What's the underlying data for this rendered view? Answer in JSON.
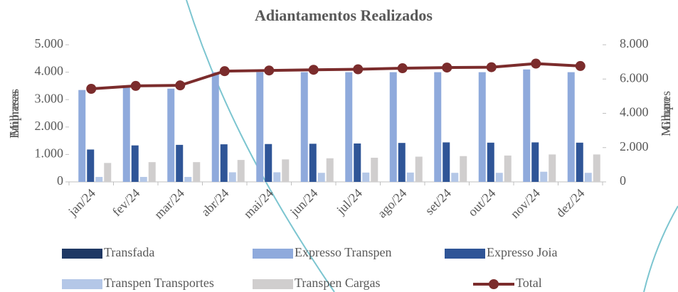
{
  "chart_data": {
    "type": "bar",
    "title": "Adiantamentos Realizados",
    "y_label": "Empresas",
    "y_units": "Milhares",
    "y2_label": "Grupo",
    "y2_units": "Milhares",
    "categories": [
      "jan/24",
      "fev/24",
      "mar/24",
      "abr/24",
      "mai/24",
      "jun/24",
      "jul/24",
      "ago/24",
      "set/24",
      "out/24",
      "nov/24",
      "dez/24"
    ],
    "ylim": [
      0,
      5000
    ],
    "yticks": [
      0,
      {
        "value": 1000,
        "label": "1.000"
      },
      {
        "value": 2000,
        "label": "2.000"
      },
      {
        "value": 3000,
        "label": "3.000"
      },
      {
        "value": 4000,
        "label": "4.000"
      },
      {
        "value": 5000,
        "label": "5.000"
      }
    ],
    "y2lim": [
      0,
      8000
    ],
    "y2ticks": [
      0,
      {
        "value": 2000,
        "label": "2.000"
      },
      {
        "value": 4000,
        "label": "4.000"
      },
      {
        "value": 6000,
        "label": "6.000"
      },
      {
        "value": 8000,
        "label": "8.000"
      }
    ],
    "series": [
      {
        "name": "Transfada",
        "color": "#1f3864",
        "type": "bar",
        "values": [
          0,
          0,
          0,
          0,
          0,
          0,
          0,
          0,
          0,
          0,
          0,
          0
        ]
      },
      {
        "name": "Expresso Transpen",
        "color": "#8faadc",
        "type": "bar",
        "values": [
          3350,
          3450,
          3400,
          4000,
          4000,
          4000,
          4000,
          4000,
          4000,
          4000,
          4100,
          4000
        ]
      },
      {
        "name": "Expresso Joia",
        "color": "#2f5597",
        "type": "bar",
        "values": [
          1180,
          1330,
          1350,
          1370,
          1380,
          1390,
          1400,
          1420,
          1440,
          1430,
          1440,
          1430
        ]
      },
      {
        "name": "Transpen Transportes",
        "color": "#b4c7e7",
        "type": "bar",
        "values": [
          180,
          180,
          180,
          350,
          350,
          330,
          340,
          340,
          330,
          330,
          370,
          330
        ]
      },
      {
        "name": "Transpen Cargas",
        "color": "#d0cece",
        "type": "bar",
        "values": [
          690,
          720,
          720,
          800,
          820,
          860,
          880,
          920,
          940,
          960,
          1000,
          1000
        ]
      },
      {
        "name": "Total",
        "color": "#7b2c2c",
        "type": "line",
        "axis": "y2",
        "values": [
          5430,
          5600,
          5630,
          6460,
          6500,
          6540,
          6570,
          6630,
          6670,
          6690,
          6900,
          6760
        ]
      }
    ]
  }
}
